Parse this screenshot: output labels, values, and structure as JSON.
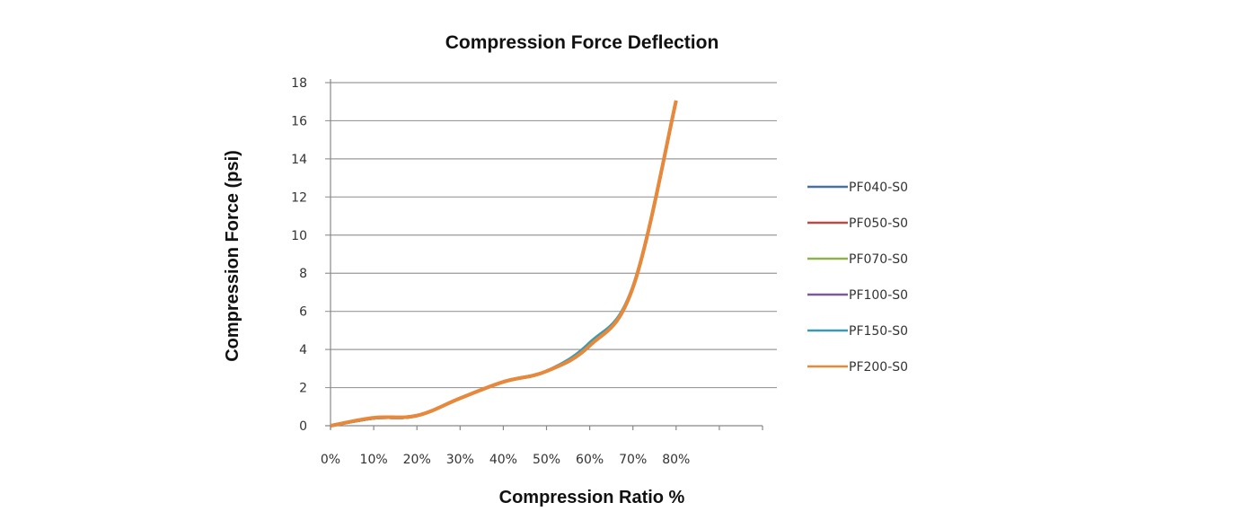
{
  "chart_data": {
    "type": "line",
    "title": "Compression Force Deflection",
    "xlabel": "Compression Ratio %",
    "ylabel": "Compression Force  (psi)",
    "x": [
      "0%",
      "10%",
      "20%",
      "30%",
      "40%",
      "50%",
      "60%",
      "70%",
      "80%"
    ],
    "xlim": [
      0,
      100
    ],
    "ylim": [
      0,
      18
    ],
    "yticks": [
      0,
      2,
      4,
      6,
      8,
      10,
      12,
      14,
      16,
      18
    ],
    "grid": "horizontal",
    "legend_position": "right",
    "series": [
      {
        "name": "PF040-S0",
        "color": "#4a6fa5",
        "values": [
          0,
          0.4,
          0.53,
          1.44,
          2.3,
          2.86,
          4.2,
          7.25,
          17.05
        ]
      },
      {
        "name": "PF050-S0",
        "color": "#b84a47",
        "values": [
          0,
          0.4,
          0.53,
          1.44,
          2.3,
          2.86,
          4.2,
          7.25,
          17.05
        ]
      },
      {
        "name": "PF070-S0",
        "color": "#8cb24a",
        "values": [
          0,
          0.4,
          0.53,
          1.44,
          2.3,
          2.86,
          4.2,
          7.25,
          17.05
        ]
      },
      {
        "name": "PF100-S0",
        "color": "#7a5a9c",
        "values": [
          0,
          0.4,
          0.53,
          1.44,
          2.3,
          2.86,
          4.2,
          7.25,
          17.05
        ]
      },
      {
        "name": "PF150-S0",
        "color": "#3a9ab0",
        "values": [
          0,
          0.4,
          0.53,
          1.44,
          2.3,
          2.86,
          4.35,
          7.3,
          17.05
        ]
      },
      {
        "name": "PF200-S0",
        "color": "#e8883a",
        "values": [
          0,
          0.42,
          0.53,
          1.44,
          2.3,
          2.86,
          4.2,
          7.25,
          17.05
        ]
      }
    ]
  }
}
